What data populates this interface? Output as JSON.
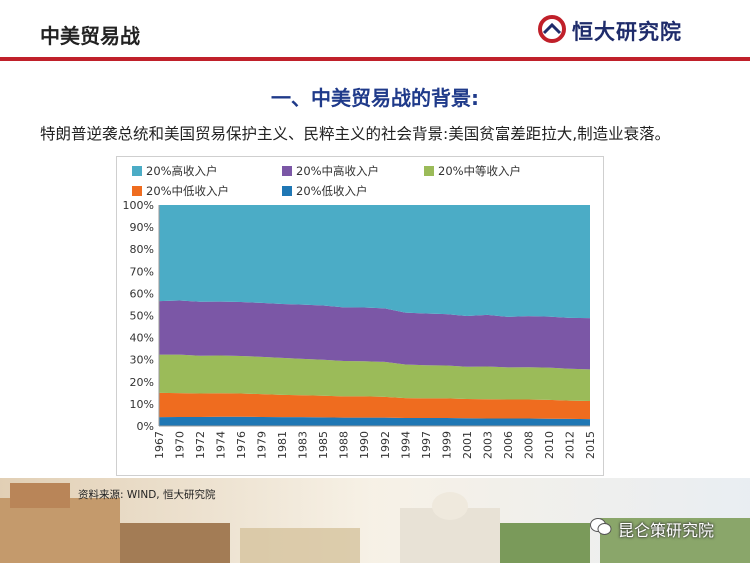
{
  "header": {
    "title": "中美贸易战",
    "brand": "恒大研究院"
  },
  "section_title": "一、中美贸易战的背景:",
  "subtitle": "特朗普逆袭总统和美国贸易保护主义、民粹主义的社会背景:美国贫富差距拉大,制造业衰落。",
  "source": "资料来源:  WIND, 恒大研究院",
  "watermark": "昆仑策研究院",
  "colors": {
    "accent_red": "#c0202a",
    "title_blue": "#1f3a8a"
  },
  "chart_data": {
    "type": "area",
    "stacked": true,
    "x": [
      "1967",
      "1970",
      "1972",
      "1974",
      "1976",
      "1979",
      "1981",
      "1983",
      "1985",
      "1988",
      "1990",
      "1992",
      "1994",
      "1997",
      "1999",
      "2001",
      "2003",
      "2006",
      "2008",
      "2010",
      "2012",
      "2015"
    ],
    "ylim": [
      0,
      100
    ],
    "ytick_labels": [
      "0%",
      "10%",
      "20%",
      "30%",
      "40%",
      "50%",
      "60%",
      "70%",
      "80%",
      "90%",
      "100%"
    ],
    "legend": "top",
    "grid": false,
    "series": [
      {
        "name": "20%低收入户",
        "color": "#1f77b4",
        "values": [
          4.0,
          4.1,
          4.1,
          4.2,
          4.2,
          4.1,
          4.0,
          4.0,
          3.9,
          3.8,
          3.8,
          3.8,
          3.6,
          3.6,
          3.6,
          3.5,
          3.4,
          3.4,
          3.4,
          3.3,
          3.2,
          3.1
        ]
      },
      {
        "name": "20%中低收入户",
        "color": "#ef6c1f",
        "values": [
          11.0,
          10.8,
          10.6,
          10.6,
          10.5,
          10.3,
          10.1,
          9.9,
          9.8,
          9.6,
          9.6,
          9.4,
          9.0,
          8.9,
          8.9,
          8.7,
          8.7,
          8.6,
          8.6,
          8.5,
          8.3,
          8.2
        ]
      },
      {
        "name": "20%中等收入户",
        "color": "#9bbb59",
        "values": [
          17.3,
          17.4,
          17.1,
          17.1,
          17.0,
          16.9,
          16.7,
          16.5,
          16.3,
          16.0,
          15.9,
          15.8,
          15.2,
          15.0,
          14.9,
          14.6,
          14.8,
          14.5,
          14.6,
          14.6,
          14.4,
          14.3
        ]
      },
      {
        "name": "20%中高收入户",
        "color": "#7b57a6",
        "values": [
          24.2,
          24.5,
          24.4,
          24.4,
          24.4,
          24.4,
          24.4,
          24.5,
          24.5,
          24.3,
          24.3,
          24.2,
          23.5,
          23.4,
          23.2,
          23.0,
          23.4,
          22.9,
          23.1,
          23.1,
          23.0,
          23.2
        ]
      },
      {
        "name": "20%高收入户",
        "color": "#4bacc6",
        "values": [
          43.5,
          43.2,
          43.8,
          43.7,
          43.9,
          44.3,
          44.8,
          45.1,
          45.5,
          46.3,
          46.4,
          46.8,
          48.7,
          49.1,
          49.4,
          50.2,
          49.7,
          50.6,
          50.3,
          50.5,
          51.1,
          51.2
        ]
      }
    ]
  }
}
